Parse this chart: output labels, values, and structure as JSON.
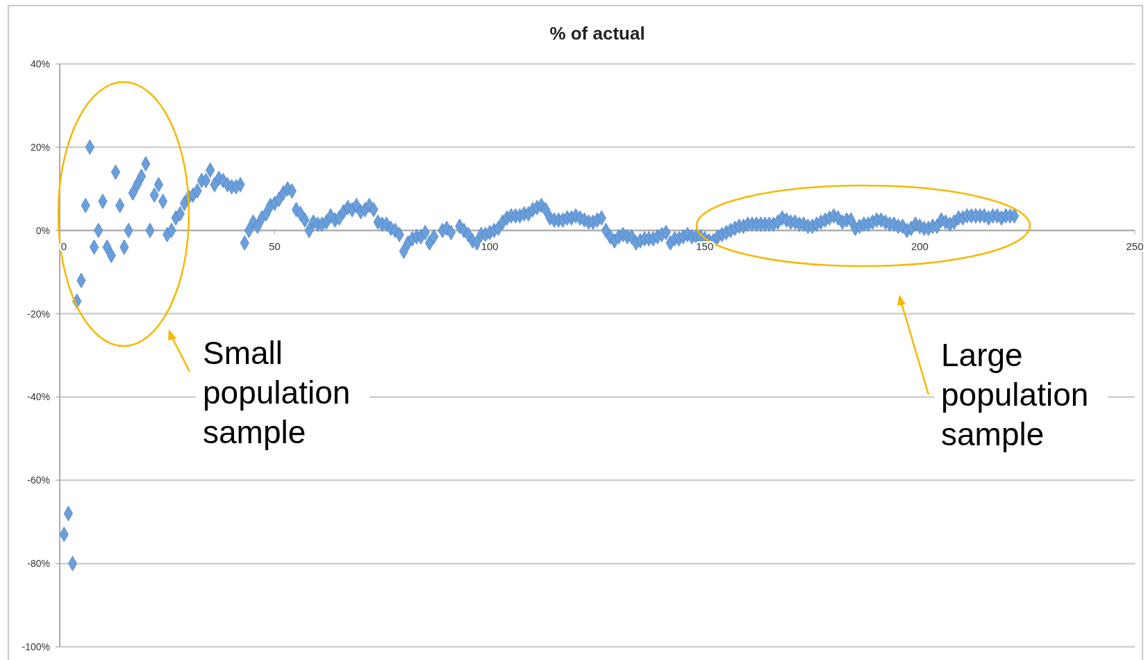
{
  "chart_data": {
    "type": "scatter",
    "title": "% of actual",
    "marker": "diamond",
    "grid": "y",
    "xlim": [
      0,
      250
    ],
    "xticks": [
      0,
      50,
      100,
      150,
      200,
      250
    ],
    "ylim": [
      -100,
      40
    ],
    "yticks": [
      {
        "value": -100,
        "label": "-100%"
      },
      {
        "value": -80,
        "label": "-80%"
      },
      {
        "value": -60,
        "label": "-60%"
      },
      {
        "value": -40,
        "label": "-40%"
      },
      {
        "value": -20,
        "label": "-20%"
      },
      {
        "value": 0,
        "label": "0%"
      },
      {
        "value": 20,
        "label": "20%"
      },
      {
        "value": 40,
        "label": "40%"
      }
    ],
    "annotations": [
      "Small population sample",
      "Large population sample"
    ],
    "series": [
      {
        "color": "#6a9fdc",
        "x": [
          1,
          2,
          3,
          4,
          5,
          6,
          7,
          8,
          9,
          10,
          11,
          12,
          13,
          14,
          15,
          16,
          17,
          18,
          19,
          20,
          21,
          22,
          23,
          24,
          25,
          26,
          27,
          28,
          29,
          30,
          31,
          32,
          33,
          34,
          35,
          36,
          37,
          38,
          39,
          40,
          41,
          42,
          43,
          44,
          45,
          46,
          47,
          48,
          49,
          50,
          51,
          52,
          53,
          54,
          55,
          56,
          57,
          58,
          59,
          60,
          61,
          62,
          63,
          64,
          65,
          66,
          67,
          68,
          69,
          70,
          71,
          72,
          73,
          74,
          75,
          76,
          77,
          78,
          79,
          80,
          81,
          82,
          83,
          84,
          85,
          86,
          87,
          89,
          90,
          91,
          93,
          94,
          95,
          96,
          97,
          98,
          99,
          100,
          101,
          102,
          103,
          104,
          105,
          106,
          107,
          108,
          109,
          110,
          111,
          112,
          113,
          114,
          115,
          116,
          117,
          118,
          119,
          120,
          121,
          122,
          123,
          124,
          125,
          126,
          127,
          128,
          129,
          130,
          131,
          132,
          133,
          134,
          135,
          136,
          137,
          138,
          139,
          140,
          141,
          142,
          143,
          144,
          145,
          146,
          147,
          148,
          149,
          150,
          151,
          152,
          153,
          154,
          155,
          156,
          157,
          158,
          159,
          160,
          161,
          162,
          163,
          164,
          165,
          166,
          167,
          168,
          169,
          170,
          171,
          172,
          173,
          174,
          175,
          176,
          177,
          178,
          179,
          180,
          181,
          182,
          183,
          184,
          185,
          186,
          187,
          188,
          189,
          190,
          191,
          192,
          193,
          194,
          195,
          196,
          197,
          198,
          199,
          200,
          201,
          202,
          203,
          204,
          205,
          206,
          207,
          208,
          209,
          210,
          211,
          212,
          213,
          214,
          215,
          216,
          217,
          218,
          219,
          220,
          221,
          222
        ],
        "values": [
          -73,
          -68,
          -80,
          -17,
          -12,
          6,
          20,
          -4,
          0,
          7,
          -4,
          -6,
          14,
          6,
          -4,
          0,
          9,
          11,
          13,
          16,
          0,
          8.5,
          11,
          7,
          -1,
          0,
          3,
          4,
          6.5,
          8,
          8.5,
          9.5,
          12,
          12,
          14.5,
          11,
          12.5,
          12,
          11,
          10.5,
          10.5,
          11,
          -3,
          0,
          2,
          1,
          3,
          4,
          6,
          6.5,
          7.5,
          9,
          10,
          9.5,
          5,
          4,
          2.5,
          0,
          2,
          1.5,
          1.5,
          2,
          3.5,
          2.5,
          3,
          4.5,
          5.5,
          5,
          6,
          4.5,
          5,
          6,
          5,
          2,
          1.5,
          1.5,
          0.5,
          0,
          -1,
          -5,
          -3,
          -2,
          -1.5,
          -1.5,
          -0.5,
          -3,
          -1.5,
          0,
          0.5,
          -0.5,
          1,
          0,
          -1,
          -2.5,
          -3,
          -1,
          -1,
          -0.5,
          0,
          0.5,
          2,
          3,
          3.5,
          3.5,
          3.5,
          4,
          4,
          5,
          5.5,
          6,
          5,
          3,
          2.5,
          2.5,
          2.5,
          3,
          3,
          3.5,
          3,
          2.5,
          2,
          2,
          2.5,
          3,
          0,
          -1.5,
          -2.5,
          -1.5,
          -1,
          -1.5,
          -1.5,
          -3,
          -2.5,
          -2,
          -2,
          -2,
          -1.5,
          -1,
          -0.5,
          -3,
          -2,
          -2,
          -1.5,
          -1,
          -1.5,
          -1.5,
          -1.5,
          -2,
          -2.5,
          -2.5,
          -1.5,
          -1,
          -0.5,
          0,
          0.5,
          1,
          1,
          1.5,
          1.5,
          1.5,
          1.5,
          1.5,
          1.5,
          1.5,
          2,
          3,
          2.5,
          2,
          2,
          1.5,
          1.5,
          1,
          1,
          1.5,
          2,
          2.5,
          3,
          3.5,
          3,
          2,
          2.5,
          2.5,
          0.5,
          1,
          1.5,
          1.5,
          2,
          2.5,
          2.5,
          2,
          1.5,
          1.5,
          1,
          1,
          0,
          0.5,
          1.5,
          1,
          0.5,
          0.5,
          1,
          1,
          2.5,
          2,
          1.5,
          2,
          3,
          3,
          3.5,
          3.5,
          3.5,
          3.5,
          3.5,
          3,
          3.5,
          3.5,
          3,
          3.5,
          3.5,
          3.5
        ]
      }
    ]
  }
}
